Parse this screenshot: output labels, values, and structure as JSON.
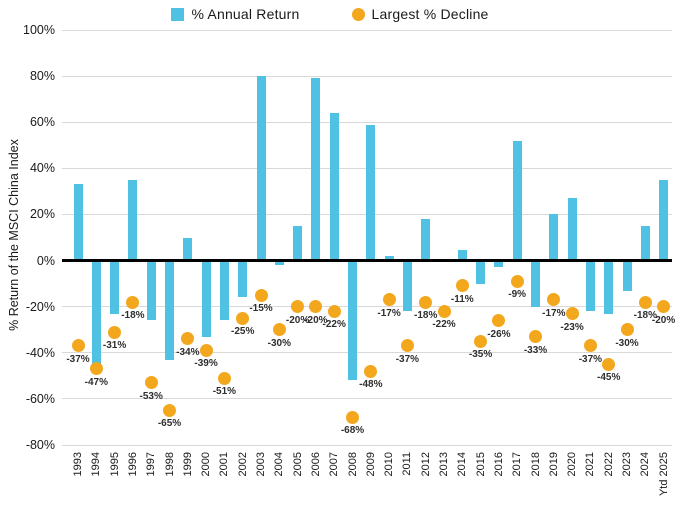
{
  "legend": {
    "items": [
      {
        "label": "% Annual Return",
        "marker": "square",
        "color": "#4FC2E3"
      },
      {
        "label": "Largest % Decline",
        "marker": "circle",
        "color": "#F2A71C"
      }
    ]
  },
  "axes": {
    "ylabel": "% Return of the MSCI China Index",
    "yticks": [
      "100%",
      "80%",
      "60%",
      "40%",
      "20%",
      "0%",
      "-20%",
      "-40%",
      "-60%",
      "-80%"
    ]
  },
  "colors": {
    "bar": "#4FC2E3",
    "dot": "#F2A71C",
    "grid": "#d9d9d9",
    "zero_line": "#000000"
  },
  "chart_data": {
    "type": "bar",
    "title": "",
    "xlabel": "",
    "ylabel": "% Return of the MSCI China Index",
    "ylim": [
      -80,
      100
    ],
    "ytick_step": 20,
    "grid": "horizontal",
    "legend_position": "top",
    "categories": [
      "1993",
      "1994",
      "1995",
      "1996",
      "1997",
      "1998",
      "1999",
      "2000",
      "2001",
      "2002",
      "2003",
      "2004",
      "2005",
      "2006",
      "2007",
      "2008",
      "2009",
      "2010",
      "2011",
      "2012",
      "2013",
      "2014",
      "2015",
      "2016",
      "2017",
      "2018",
      "2019",
      "2020",
      "2021",
      "2022",
      "2023",
      "2024",
      "Ytd 2025"
    ],
    "series": [
      {
        "name": "% Annual Return",
        "type": "bar",
        "color": "#4FC2E3",
        "values": [
          33,
          -46,
          -23,
          35,
          -26,
          -43,
          10,
          -33,
          -26,
          -16,
          80,
          -2,
          15,
          79,
          64,
          -52,
          59,
          2,
          -22,
          18,
          0.4,
          4.5,
          -10,
          -3,
          52,
          -20,
          20,
          27,
          -22,
          -23,
          -13,
          15,
          35
        ]
      },
      {
        "name": "Largest % Decline",
        "type": "scatter",
        "color": "#F2A71C",
        "values": [
          -37,
          -47,
          -31,
          -18,
          -53,
          -65,
          -34,
          -39,
          -51,
          -25,
          -15,
          -30,
          -20,
          -20,
          -22,
          -68,
          -48,
          -17,
          -37,
          -18,
          -22,
          -11,
          -35,
          -26,
          -9,
          -33,
          -17,
          -23,
          -37,
          -45,
          -30,
          -18,
          -20
        ],
        "point_labels": [
          "-37%",
          "-47%",
          "-31%",
          "-18%",
          "-53%",
          "-65%",
          "-34%",
          "-39%",
          "-51%",
          "-25%",
          "-15%",
          "-30%",
          "-20%",
          "-20%",
          "-22%",
          "-68%",
          "-48%",
          "-17%",
          "-37%",
          "-18%",
          "-22%",
          "-11%",
          "-35%",
          "-26%",
          "-9%",
          "-33%",
          "-17%",
          "-23%",
          "-37%",
          "-45%",
          "-30%",
          "-18%",
          "-20%"
        ]
      }
    ]
  }
}
